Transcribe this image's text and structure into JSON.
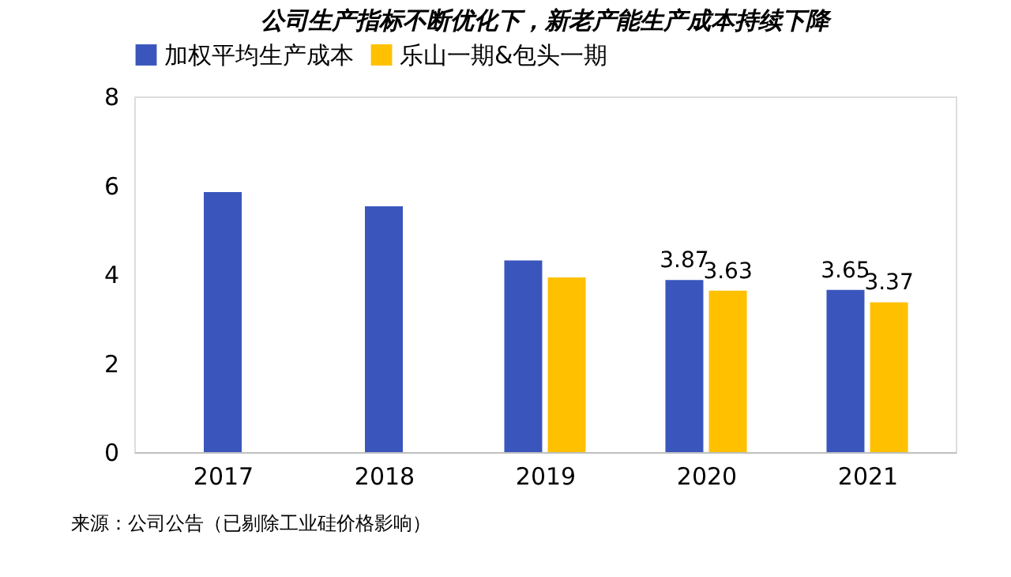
{
  "chart_data": {
    "type": "bar",
    "title": "公司生产指标不断优化下，新老产能生产成本持续下降",
    "categories": [
      "2017",
      "2018",
      "2019",
      "2020",
      "2021"
    ],
    "series": [
      {
        "name": "加权平均生产成本",
        "color": "#3a56bd",
        "values": [
          5.85,
          5.53,
          4.31,
          3.87,
          3.65
        ],
        "value_labels": [
          null,
          null,
          null,
          "3.87",
          "3.65"
        ]
      },
      {
        "name": "乐山一期&包头一期",
        "color": "#ffc000",
        "values": [
          null,
          null,
          3.93,
          3.63,
          3.37
        ],
        "value_labels": [
          null,
          null,
          null,
          "3.63",
          "3.37"
        ]
      }
    ],
    "ylim": [
      0,
      8
    ],
    "yticks": [
      0,
      2,
      4,
      6,
      8
    ],
    "grid": false,
    "legend": "top",
    "annotations": [
      "来源：公司公告（已剔除工业硅价格影响）"
    ]
  }
}
